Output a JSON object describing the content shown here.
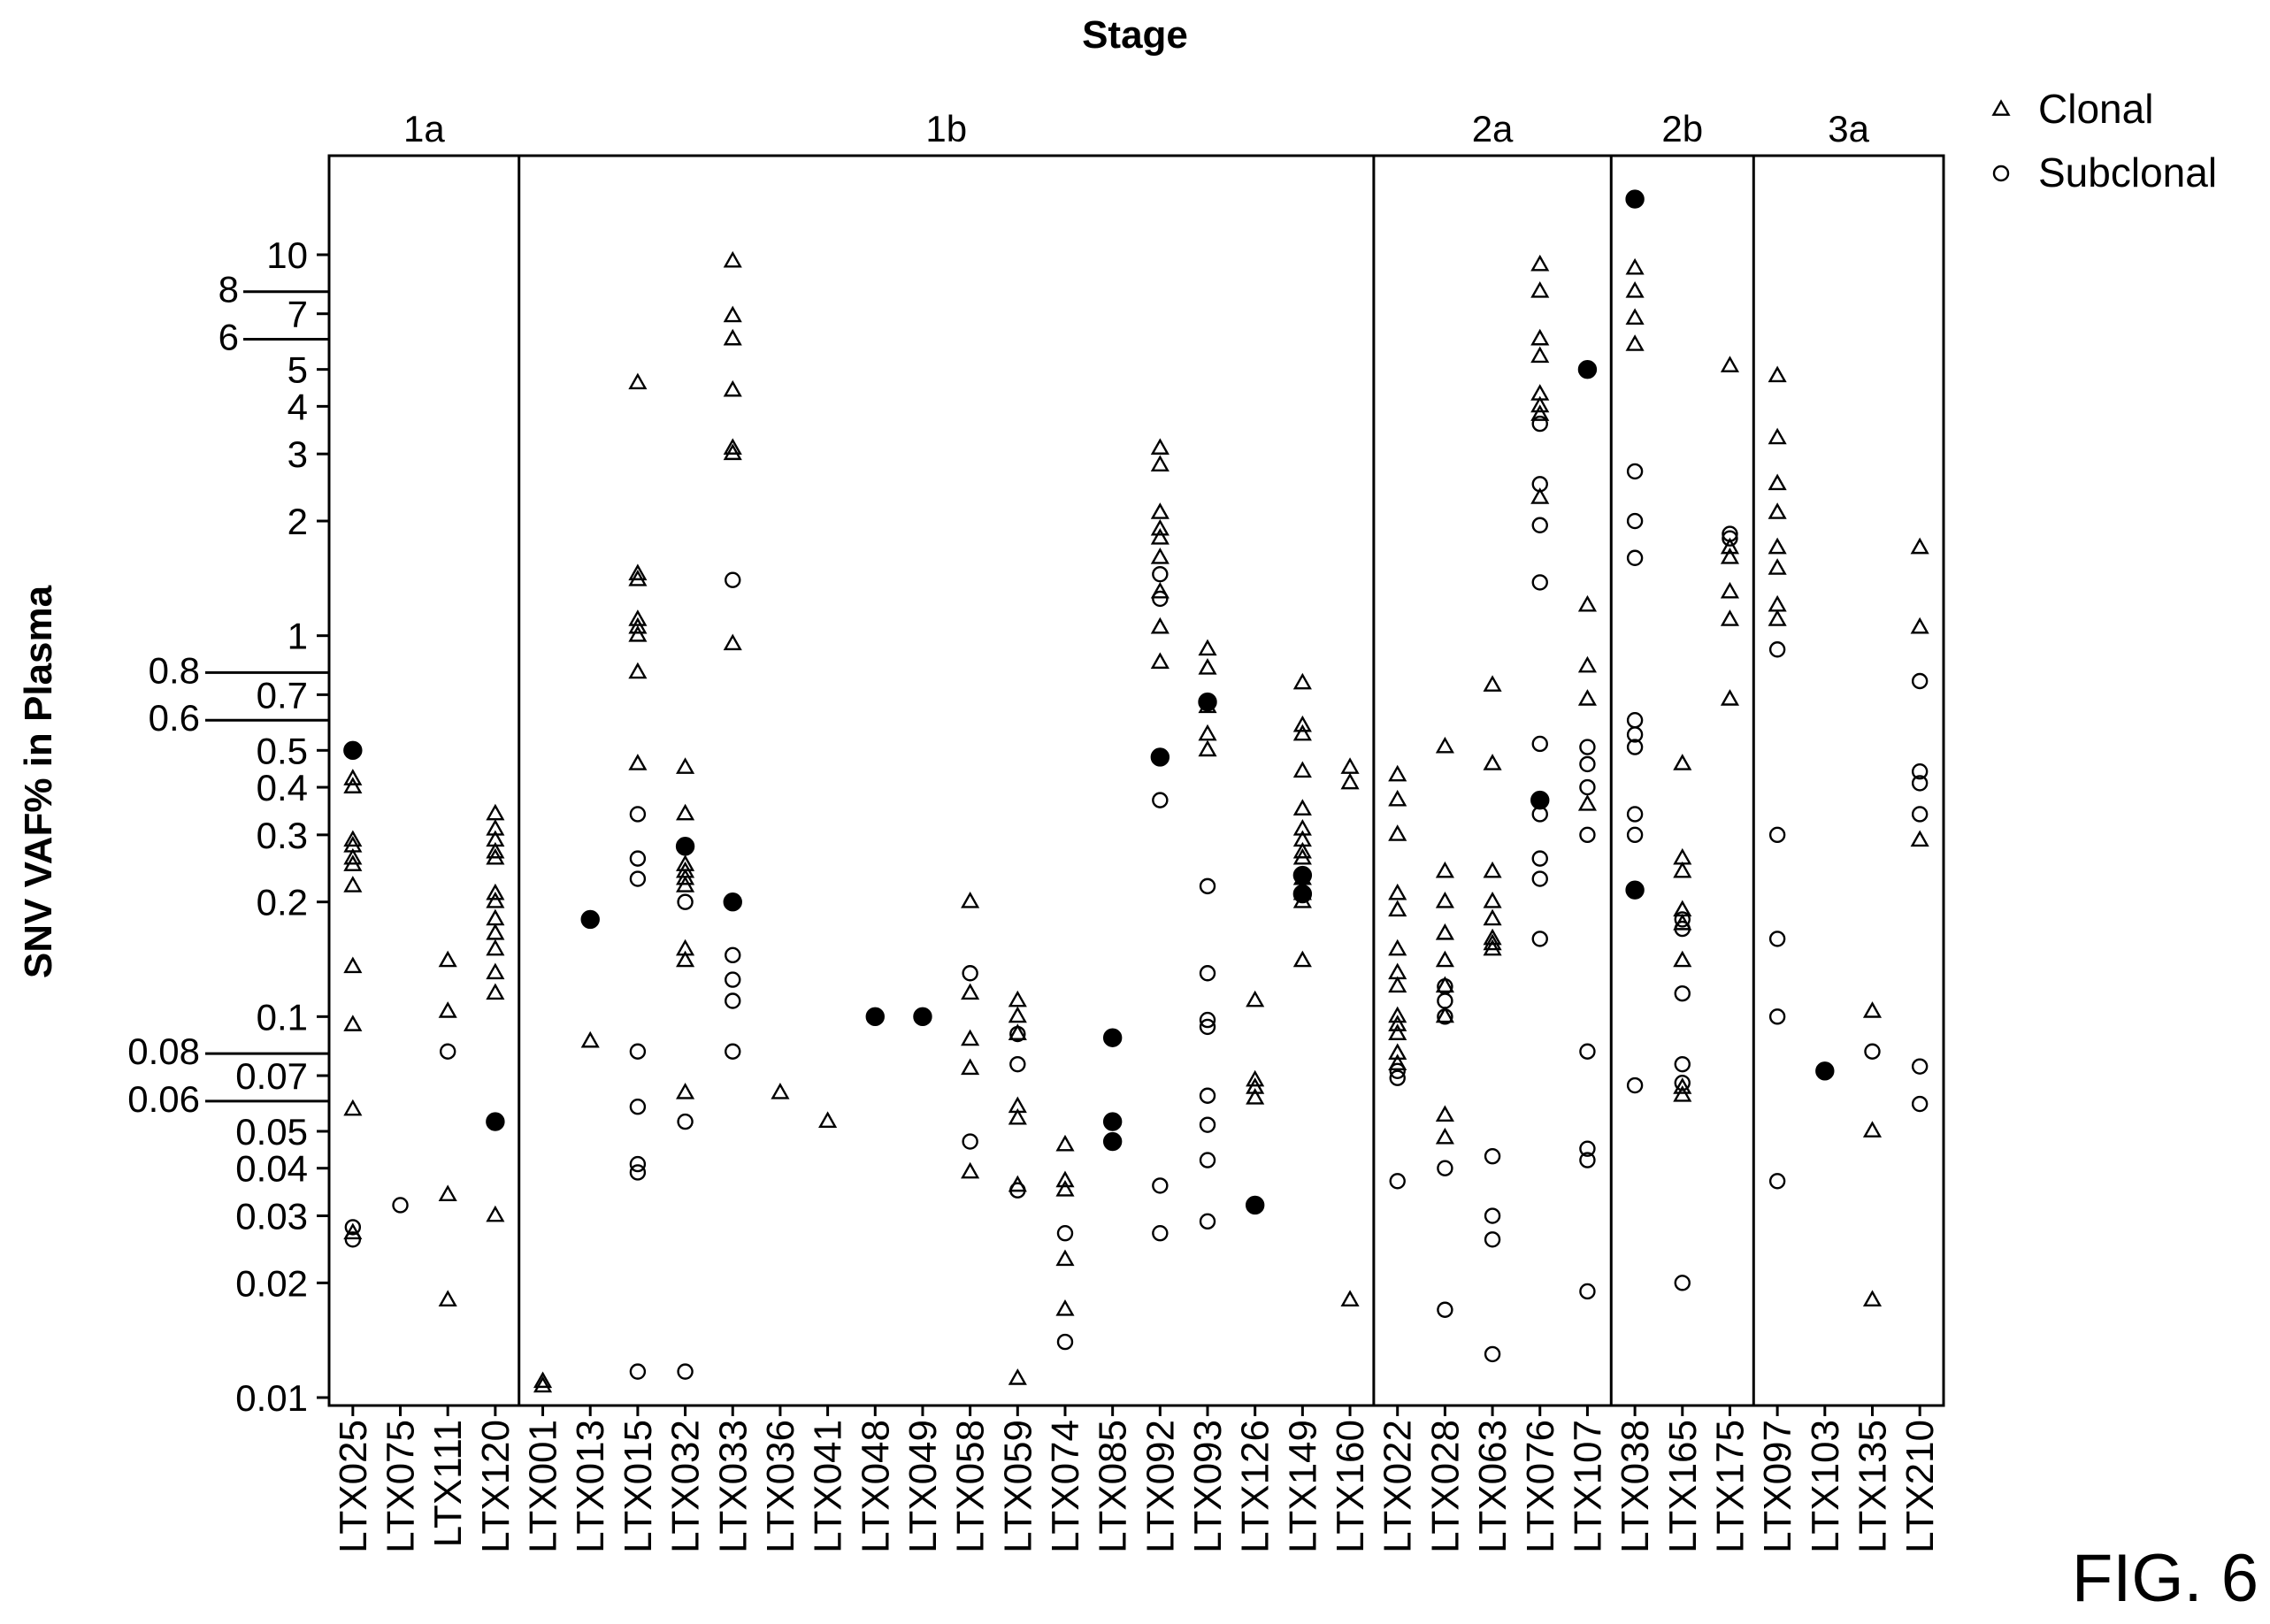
{
  "figure_label": "FIG. 6",
  "chart_data": {
    "type": "scatter",
    "title": "Stage",
    "xlabel": "",
    "ylabel": "SNV VAF% in Plasma",
    "yscale": "log",
    "ylim": [
      0.01,
      15
    ],
    "legend": {
      "position": "top-right",
      "entries": [
        {
          "label": "Clonal",
          "marker": "triangle"
        },
        {
          "label": "Subclonal",
          "marker": "circle"
        }
      ]
    },
    "stages": [
      {
        "label": "1a",
        "patients": [
          "LTX025",
          "LTX075",
          "LTX111",
          "LTX120"
        ]
      },
      {
        "label": "1b",
        "patients": [
          "LTX001",
          "LTX013",
          "LTX015",
          "LTX032",
          "LTX033",
          "LTX036",
          "LTX041",
          "LTX048",
          "LTX049",
          "LTX058",
          "LTX059",
          "LTX074",
          "LTX085",
          "LTX092",
          "LTX093",
          "LTX126",
          "LTX149",
          "LTX160"
        ]
      },
      {
        "label": "2a",
        "patients": [
          "LTX022",
          "LTX028",
          "LTX063",
          "LTX076",
          "LTX107"
        ]
      },
      {
        "label": "2b",
        "patients": [
          "LTX038",
          "LTX165",
          "LTX175"
        ]
      },
      {
        "label": "3a",
        "patients": [
          "LTX097",
          "LTX103",
          "LTX135",
          "LTX210"
        ]
      }
    ],
    "y_ticks": [
      "0.01",
      "0.02",
      "0.03",
      "0.04",
      "0.05",
      "0.06",
      "0.07",
      "0.08",
      "0.1",
      "0.2",
      "0.3",
      "0.4",
      "0.5",
      "0.6",
      "0.7",
      "0.8",
      "1",
      "2",
      "3",
      "4",
      "5",
      "6",
      "7",
      "8",
      "10"
    ],
    "series": [
      {
        "name": "Clonal",
        "marker": "triangle",
        "points": {
          "LTX025": [
            0.42,
            0.4,
            0.29,
            0.28,
            0.26,
            0.25,
            0.22,
            0.135,
            0.095,
            0.057,
            0.027
          ],
          "LTX111": [
            0.14,
            0.103,
            0.034,
            0.018
          ],
          "LTX120": [
            0.34,
            0.31,
            0.29,
            0.27,
            0.26,
            0.21,
            0.2,
            0.18,
            0.165,
            0.15,
            0.13,
            0.115,
            0.03
          ],
          "LTX001": [
            0.011,
            0.0107
          ],
          "LTX013": [
            0.086
          ],
          "LTX015": [
            4.6,
            1.45,
            1.4,
            1.1,
            1.05,
            1.0,
            0.8,
            0.46
          ],
          "LTX032": [
            0.45,
            0.34,
            0.25,
            0.24,
            0.23,
            0.22,
            0.15,
            0.14,
            0.063
          ],
          "LTX033": [
            9.6,
            6.9,
            6.0,
            4.4,
            3.1,
            3.0,
            0.95
          ],
          "LTX036": [
            0.063
          ],
          "LTX041": [
            0.053
          ],
          "LTX058": [
            0.2,
            0.115,
            0.087,
            0.073,
            0.039
          ],
          "LTX059": [
            0.11,
            0.1,
            0.09,
            0.058,
            0.054,
            0.036,
            0.0112
          ],
          "LTX074": [
            0.046,
            0.037,
            0.035,
            0.023,
            0.017
          ],
          "LTX092": [
            3.1,
            2.8,
            2.1,
            1.9,
            1.8,
            1.6,
            1.3,
            1.05,
            0.85
          ],
          "LTX093": [
            0.92,
            0.82,
            0.65,
            0.55,
            0.5
          ],
          "LTX126": [
            0.11,
            0.068,
            0.065,
            0.061
          ],
          "LTX149": [
            0.75,
            0.58,
            0.55,
            0.44,
            0.35,
            0.31,
            0.29,
            0.27,
            0.26,
            0.23,
            0.21,
            0.2,
            0.14
          ],
          "LTX160": [
            0.45,
            0.41,
            0.018
          ],
          "LTX022": [
            0.43,
            0.37,
            0.3,
            0.21,
            0.19,
            0.15,
            0.13,
            0.12,
            0.1,
            0.095,
            0.09,
            0.08,
            0.075
          ],
          "LTX028": [
            0.51,
            0.24,
            0.2,
            0.165,
            0.14,
            0.12,
            0.1,
            0.055,
            0.048
          ],
          "LTX063": [
            0.74,
            0.46,
            0.24,
            0.2,
            0.18,
            0.16,
            0.155,
            0.15
          ],
          "LTX076": [
            9.4,
            8.0,
            6.0,
            5.4,
            4.3,
            4.0,
            3.8,
            2.3
          ],
          "LTX107": [
            1.2,
            0.83,
            0.68,
            0.36
          ],
          "LTX038": [
            9.2,
            8.0,
            6.8,
            5.8
          ],
          "LTX165": [
            0.46,
            0.26,
            0.24,
            0.19,
            0.175,
            0.14,
            0.065,
            0.062
          ],
          "LTX175": [
            5.1,
            1.7,
            1.6,
            1.3,
            1.1,
            0.68
          ],
          "LTX097": [
            4.8,
            3.3,
            2.5,
            2.1,
            1.7,
            1.5,
            1.2,
            1.1
          ],
          "LTX135": [
            0.103,
            0.05,
            0.018
          ],
          "LTX210": [
            1.7,
            1.05,
            0.29
          ]
        }
      },
      {
        "name": "Subclonal",
        "marker": "circle",
        "points": {
          "LTX025": [
            0.028,
            0.026
          ],
          "LTX075": [
            0.032
          ],
          "LTX111": [
            0.081
          ],
          "LTX015": [
            0.34,
            0.26,
            0.23,
            0.081,
            0.058,
            0.041,
            0.039,
            0.0117
          ],
          "LTX032": [
            0.2,
            0.053,
            0.0117
          ],
          "LTX033": [
            1.4,
            0.145,
            0.125,
            0.11,
            0.081
          ],
          "LTX058": [
            0.13,
            0.047
          ],
          "LTX059": [
            0.09,
            0.075,
            0.035
          ],
          "LTX074": [
            0.027,
            0.014
          ],
          "LTX092": [
            1.45,
            1.25,
            0.37,
            0.036,
            0.027
          ],
          "LTX093": [
            0.22,
            0.13,
            0.098,
            0.094,
            0.062,
            0.052,
            0.042,
            0.029
          ],
          "LTX022": [
            0.072,
            0.069,
            0.037
          ],
          "LTX028": [
            0.12,
            0.11,
            0.1,
            0.04,
            0.017
          ],
          "LTX063": [
            0.043,
            0.03,
            0.026,
            0.013
          ],
          "LTX076": [
            3.6,
            2.5,
            1.95,
            1.38,
            0.52,
            0.34,
            0.26,
            0.23,
            0.16
          ],
          "LTX107": [
            0.51,
            0.46,
            0.4,
            0.3,
            0.081,
            0.045,
            0.042,
            0.019
          ],
          "LTX038": [
            2.7,
            2.0,
            1.6,
            0.6,
            0.55,
            0.51,
            0.34,
            0.3,
            0.066
          ],
          "LTX165": [
            0.18,
            0.17,
            0.115,
            0.075,
            0.067,
            0.02
          ],
          "LTX175": [
            1.85,
            1.8
          ],
          "LTX097": [
            0.92,
            0.3,
            0.16,
            0.1,
            0.037
          ],
          "LTX135": [
            0.081
          ],
          "LTX210": [
            0.76,
            0.44,
            0.41,
            0.34,
            0.074,
            0.059
          ]
        }
      },
      {
        "name": "",
        "marker": "filled-circle",
        "points": {
          "LTX025": [
            0.5
          ],
          "LTX120": [
            0.053
          ],
          "LTX013": [
            0.18
          ],
          "LTX032": [
            0.28
          ],
          "LTX033": [
            0.2
          ],
          "LTX048": [
            0.1
          ],
          "LTX049": [
            0.1
          ],
          "LTX085": [
            0.088,
            0.053,
            0.047
          ],
          "LTX092": [
            0.48
          ],
          "LTX093": [
            0.67
          ],
          "LTX126": [
            0.032
          ],
          "LTX149": [
            0.235,
            0.21
          ],
          "LTX076": [
            0.37
          ],
          "LTX107": [
            5.0
          ],
          "LTX038": [
            14.0,
            0.215
          ],
          "LTX103": [
            0.072
          ]
        }
      }
    ]
  }
}
